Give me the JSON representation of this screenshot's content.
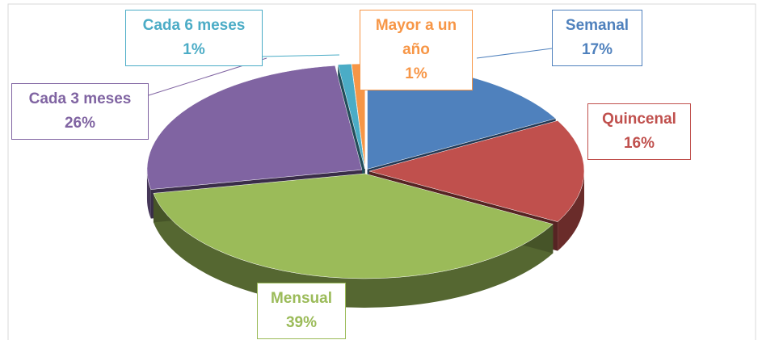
{
  "chart_data": {
    "type": "pie",
    "categories": [
      "Semanal",
      "Quincenal",
      "Mensual",
      "Cada 3 meses",
      "Cada 6 meses",
      "Mayor a un año"
    ],
    "values": [
      17,
      16,
      39,
      26,
      1,
      1
    ],
    "value_labels": [
      "17%",
      "16%",
      "39%",
      "26%",
      "1%",
      "1%"
    ],
    "colors": [
      "#4f81bd",
      "#c0504d",
      "#9bbb59",
      "#8064a2",
      "#4bacc6",
      "#f79646"
    ]
  }
}
